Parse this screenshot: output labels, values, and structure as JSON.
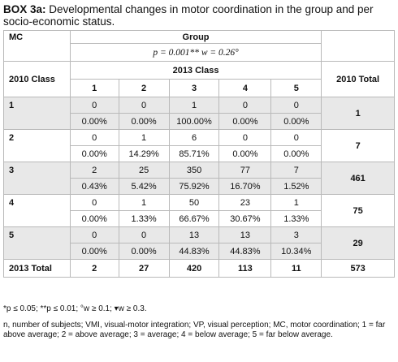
{
  "caption": {
    "label": "BOX 3a:",
    "text": " Developmental changes in motor coordination in the group and per socio-economic status."
  },
  "table": {
    "mc_header": "MC",
    "group_header": "Group",
    "stat_line": "p = 0.001** w = 0.26°",
    "row_header": "2010 Class",
    "col_group_header": "2013 Class",
    "total_header": "2010 Total",
    "columns": [
      "1",
      "2",
      "3",
      "4",
      "5"
    ],
    "rows": [
      {
        "label": "1",
        "counts": [
          "0",
          "0",
          "1",
          "0",
          "0"
        ],
        "percents": [
          "0.00%",
          "0.00%",
          "100.00%",
          "0.00%",
          "0.00%"
        ],
        "total": "1"
      },
      {
        "label": "2",
        "counts": [
          "0",
          "1",
          "6",
          "0",
          "0"
        ],
        "percents": [
          "0.00%",
          "14.29%",
          "85.71%",
          "0.00%",
          "0.00%"
        ],
        "total": "7"
      },
      {
        "label": "3",
        "counts": [
          "2",
          "25",
          "350",
          "77",
          "7"
        ],
        "percents": [
          "0.43%",
          "5.42%",
          "75.92%",
          "16.70%",
          "1.52%"
        ],
        "total": "461"
      },
      {
        "label": "4",
        "counts": [
          "0",
          "1",
          "50",
          "23",
          "1"
        ],
        "percents": [
          "0.00%",
          "1.33%",
          "66.67%",
          "30.67%",
          "1.33%"
        ],
        "total": "75"
      },
      {
        "label": "5",
        "counts": [
          "0",
          "0",
          "13",
          "13",
          "3"
        ],
        "percents": [
          "0.00%",
          "0.00%",
          "44.83%",
          "44.83%",
          "10.34%"
        ],
        "total": "29"
      }
    ],
    "total_row": {
      "label": "2013 Total",
      "values": [
        "2",
        "27",
        "420",
        "113",
        "11"
      ],
      "grand_total": "573"
    }
  },
  "notes": {
    "significance": "*p ≤ 0.05; **p ≤ 0.01; °w ≥ 0.1; ▾w ≥ 0.3.",
    "abbreviations": "n, number of subjects; VMI, visual-motor integration; VP, visual perception; MC, motor coordination; 1 = far above average; 2 = above average; 3 = average; 4 = below average; 5 = far below average."
  }
}
